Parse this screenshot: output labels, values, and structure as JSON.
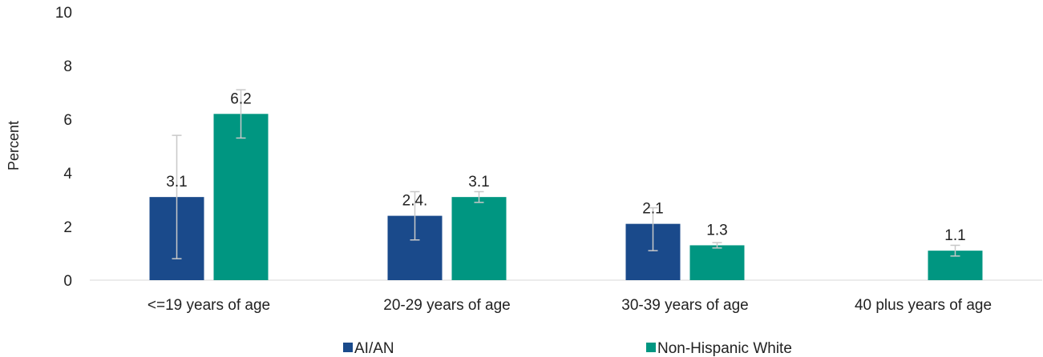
{
  "chart_data": {
    "type": "bar",
    "title": "",
    "xlabel": "",
    "ylabel": "Percent",
    "ylim": [
      0,
      10
    ],
    "yticks": [
      0,
      2,
      4,
      6,
      8,
      10
    ],
    "grid": false,
    "legend_position": "bottom",
    "categories": [
      "<=19 years of age",
      "20-29 years of age",
      "30-39 years of age",
      "40 plus years of age"
    ],
    "series": [
      {
        "name": "AI/AN",
        "color": "#1a4a8b",
        "values": [
          3.1,
          2.4,
          2.1,
          null
        ],
        "data_labels": [
          "3.1",
          "2.4.",
          "2.1",
          ""
        ],
        "error_low": [
          0.8,
          1.5,
          1.1,
          null
        ],
        "error_high": [
          5.4,
          3.3,
          2.7,
          null
        ]
      },
      {
        "name": "Non-Hispanic White",
        "color": "#009681",
        "values": [
          6.2,
          3.1,
          1.3,
          1.1
        ],
        "data_labels": [
          "6.2",
          "3.1",
          "1.3",
          "1.1"
        ],
        "error_low": [
          5.3,
          2.9,
          1.2,
          0.9
        ],
        "error_high": [
          7.1,
          3.3,
          1.4,
          1.3
        ]
      }
    ],
    "error_bar_color": "#c8c8c8",
    "axis_color": "#d9d9d9"
  }
}
